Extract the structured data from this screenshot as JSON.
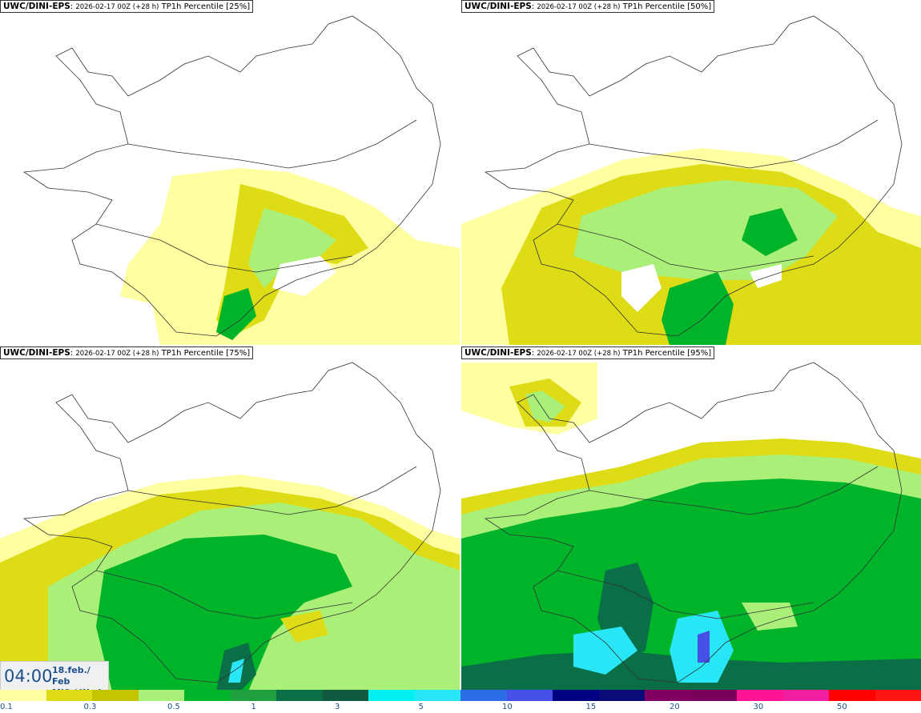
{
  "panels": [
    {
      "model": "UWC/DINI-EPS",
      "run": "2026-02-17 00Z (+28 h)",
      "field": "TP1h Percentile [25%]"
    },
    {
      "model": "UWC/DINI-EPS",
      "run": "2026-02-17 00Z (+28 h)",
      "field": "TP1h Percentile [50%]"
    },
    {
      "model": "UWC/DINI-EPS",
      "run": "2026-02-17 00Z (+28 h)",
      "field": "TP1h Percentile [75%]"
    },
    {
      "model": "UWC/DINI-EPS",
      "run": "2026-02-17 00Z (+28 h)",
      "field": "TP1h Percentile [95%]"
    }
  ],
  "valid": {
    "time": "04:00",
    "date_line1": "18.feb./ Feb",
    "date_line2": "Mið./ Wed"
  },
  "legend": {
    "colors": [
      "#fffea0",
      "#dddc16",
      "#c4c400",
      "#aaf078",
      "#00b42a",
      "#1ea03c",
      "#0a6e46",
      "#115a41",
      "#00f0f0",
      "#28e6f5",
      "#2c6ce6",
      "#4650e6",
      "#000082",
      "#0a0a78",
      "#820064",
      "#78005a",
      "#ff1493",
      "#f01ea0",
      "#ff0000",
      "#ff1414"
    ],
    "ticks": [
      "0.1",
      "0.3",
      "0.5",
      "1",
      "3",
      "5",
      "10",
      "15",
      "20",
      "30",
      "50"
    ]
  }
}
